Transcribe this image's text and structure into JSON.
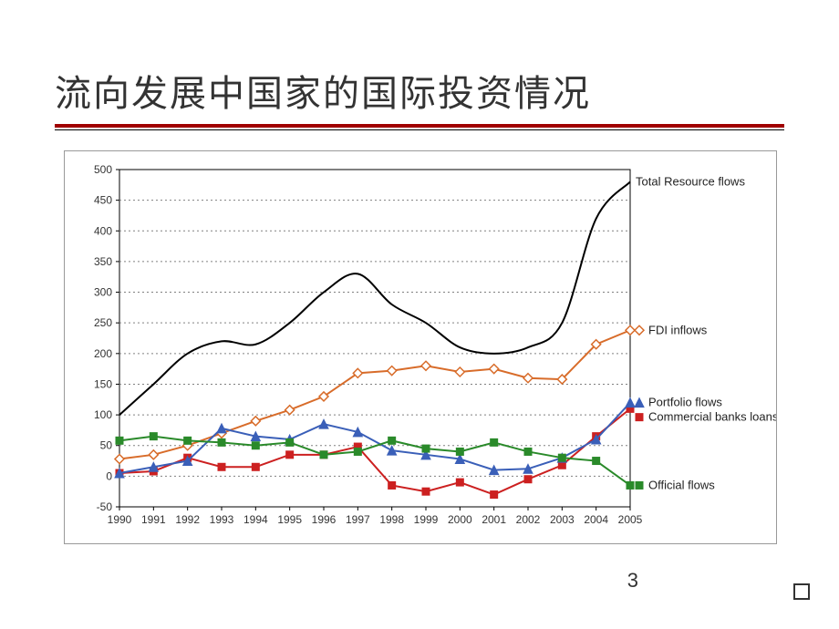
{
  "slide": {
    "title": "流向发展中国家的国际投资情况",
    "page_number": "3",
    "title_color": "#333333",
    "underline_color": "#a00000",
    "background_color": "#ffffff"
  },
  "chart": {
    "type": "line",
    "background_color": "#ffffff",
    "plot_border_color": "#000000",
    "grid_color": "#808080",
    "grid_dash": "2,3",
    "axis_fontsize": 12,
    "axis_color": "#333333",
    "legend_fontsize": 13,
    "legend_color": "#222222",
    "ylim": [
      -50,
      500
    ],
    "ytick_step": 50,
    "yticks": [
      -50,
      0,
      50,
      100,
      150,
      200,
      250,
      300,
      350,
      400,
      450,
      500
    ],
    "xticks": [
      "1990",
      "1991",
      "1992",
      "1993",
      "1994",
      "1995",
      "1996",
      "1997",
      "1998",
      "1999",
      "2000",
      "2001",
      "2002",
      "2003",
      "2004",
      "2005"
    ],
    "series": [
      {
        "name": "Total Resource flows",
        "label": "Total Resource flows",
        "color": "#000000",
        "line_width": 2,
        "marker": "none",
        "dash": "none",
        "values": [
          100,
          150,
          200,
          220,
          215,
          250,
          300,
          330,
          280,
          250,
          210,
          200,
          210,
          250,
          420,
          480
        ]
      },
      {
        "name": "FDI inflows",
        "label": "FDI inflows",
        "color": "#d86c2a",
        "line_width": 2,
        "marker": "diamond",
        "marker_fill": "#ffffff",
        "dash": "none",
        "values": [
          28,
          35,
          50,
          70,
          90,
          108,
          130,
          168,
          172,
          180,
          170,
          175,
          160,
          158,
          215,
          238
        ]
      },
      {
        "name": "Commercial banks loans",
        "label": "Commercial banks loans",
        "color": "#cc2020",
        "line_width": 2,
        "marker": "square",
        "marker_fill": "#cc2020",
        "dash": "none",
        "values": [
          5,
          8,
          30,
          15,
          15,
          35,
          35,
          48,
          -15,
          -25,
          -10,
          -30,
          -5,
          18,
          65,
          110
        ]
      },
      {
        "name": "Portfolio flows",
        "label": "Portfolio flows",
        "color": "#3a5fb8",
        "line_width": 2,
        "marker": "triangle",
        "marker_fill": "#3a5fb8",
        "dash": "none",
        "values": [
          5,
          15,
          25,
          78,
          65,
          60,
          85,
          72,
          42,
          35,
          28,
          10,
          12,
          30,
          60,
          120
        ]
      },
      {
        "name": "Official flows",
        "label": "Official flows",
        "color": "#2a8a2a",
        "line_width": 2,
        "marker": "square",
        "marker_fill": "#2a8a2a",
        "dash": "none",
        "values": [
          58,
          65,
          58,
          55,
          50,
          55,
          35,
          40,
          58,
          45,
          40,
          55,
          40,
          30,
          25,
          -15
        ]
      }
    ]
  }
}
